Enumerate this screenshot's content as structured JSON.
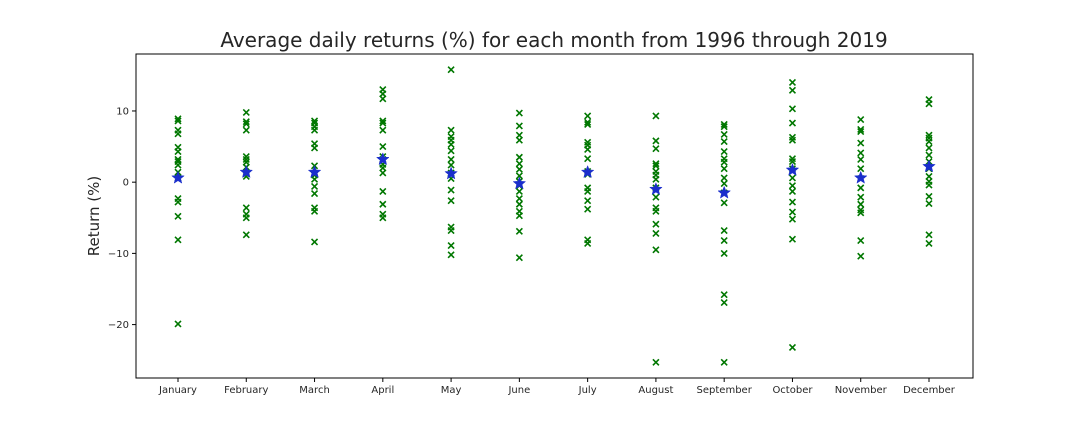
{
  "chart_data": {
    "type": "scatter",
    "title": "Average daily returns (%) for each month from 1996 through 2019",
    "xlabel": "",
    "ylabel": "Return (%)",
    "categories": [
      "January",
      "February",
      "March",
      "April",
      "May",
      "June",
      "July",
      "August",
      "September",
      "October",
      "November",
      "December"
    ],
    "ylim": [
      -27.5,
      18
    ],
    "yticks": [
      10,
      0,
      -10,
      -20
    ],
    "ytick_labels": [
      "10",
      "0",
      "−10",
      "−20"
    ],
    "grid": false,
    "series": [
      {
        "marker": "x",
        "color": "#007700",
        "points_by_category": [
          [
            -19.9,
            -8.1,
            -4.8,
            -2.8,
            -2.3,
            0.6,
            1.4,
            2.4,
            2.9,
            3.2,
            4.3,
            4.9,
            6.8,
            7.3,
            8.6,
            8.9
          ],
          [
            -7.4,
            -5.0,
            -4.5,
            -3.6,
            0.8,
            1.2,
            2.1,
            2.8,
            3.2,
            3.6,
            7.3,
            8.2,
            8.5,
            9.8
          ],
          [
            -8.4,
            -4.1,
            -3.6,
            -1.6,
            -0.6,
            0.4,
            1.0,
            2.3,
            4.8,
            5.4,
            7.3,
            7.8,
            8.3,
            8.6
          ],
          [
            -5.0,
            -4.5,
            -3.1,
            -1.3,
            1.3,
            2.0,
            2.5,
            3.2,
            3.6,
            5.0,
            7.3,
            8.3,
            8.6,
            11.7,
            12.4,
            13.0
          ],
          [
            -10.2,
            -8.9,
            -6.8,
            -6.3,
            -2.6,
            -1.1,
            0.5,
            1.3,
            2.4,
            3.2,
            4.4,
            5.3,
            5.9,
            6.4,
            7.3,
            15.8
          ],
          [
            -10.6,
            -6.9,
            -4.7,
            -4.1,
            -3.1,
            -2.3,
            -1.3,
            -0.5,
            0.1,
            0.9,
            1.8,
            2.6,
            3.5,
            5.9,
            6.6,
            7.9,
            9.7
          ],
          [
            -8.6,
            -8.1,
            -3.8,
            -2.6,
            -1.3,
            -0.8,
            1.1,
            1.5,
            3.3,
            4.6,
            5.2,
            5.6,
            8.1,
            8.4,
            9.3
          ],
          [
            -25.3,
            -9.5,
            -7.2,
            -5.9,
            -4.1,
            -3.6,
            -2.1,
            -0.8,
            0.4,
            1.0,
            1.5,
            2.3,
            2.6,
            4.7,
            5.8,
            9.3
          ],
          [
            -25.3,
            -16.9,
            -15.8,
            -10.0,
            -8.2,
            -6.8,
            -2.9,
            -1.5,
            -0.2,
            0.6,
            1.9,
            2.8,
            3.3,
            4.3,
            5.7,
            6.7,
            7.8,
            8.1
          ],
          [
            -23.2,
            -8.0,
            -5.2,
            -4.2,
            -2.8,
            -1.3,
            -0.5,
            0.6,
            1.9,
            2.9,
            3.3,
            5.9,
            6.3,
            8.3,
            10.3,
            12.9,
            14.0
          ],
          [
            -10.4,
            -8.2,
            -4.3,
            -3.9,
            -3.1,
            -2.1,
            -0.8,
            0.5,
            1.9,
            3.2,
            4.1,
            5.5,
            7.1,
            7.4,
            8.8
          ],
          [
            -8.6,
            -7.4,
            -3.0,
            -2.0,
            -0.4,
            0.1,
            0.8,
            1.9,
            2.9,
            3.8,
            4.8,
            5.7,
            6.2,
            6.6,
            11.0,
            11.6
          ]
        ]
      },
      {
        "marker": "star",
        "color": "#1a2ecc",
        "values": [
          0.6,
          1.4,
          1.4,
          3.2,
          1.2,
          -0.2,
          1.4,
          -1.0,
          -1.5,
          1.7,
          0.6,
          2.2
        ]
      }
    ]
  }
}
